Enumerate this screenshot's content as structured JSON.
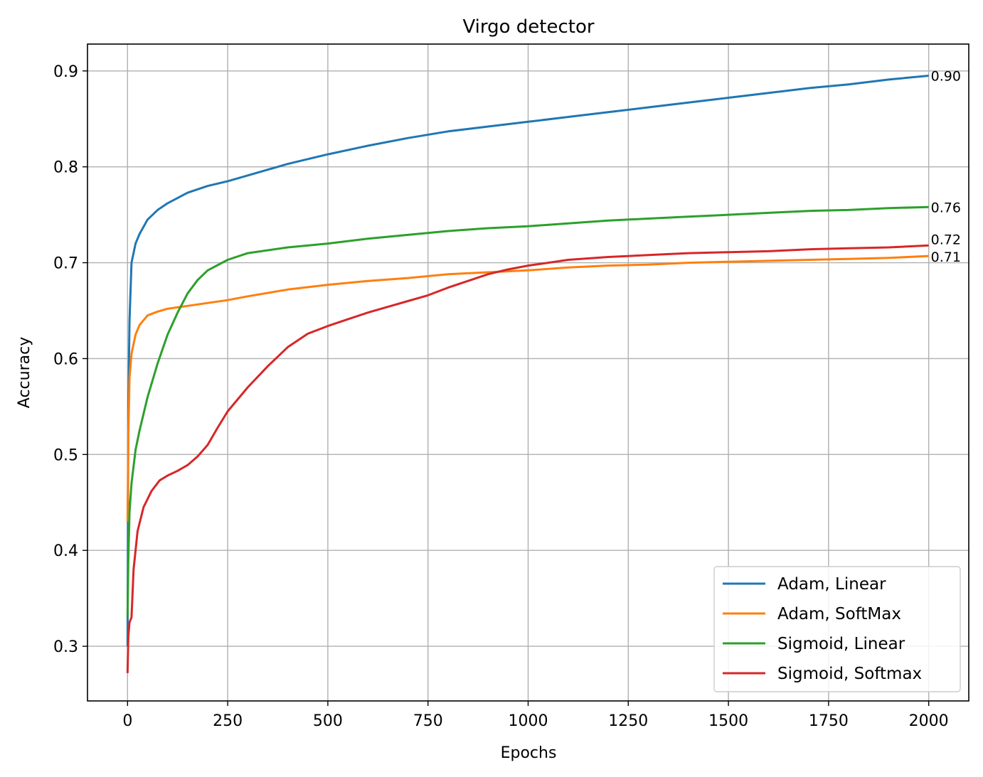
{
  "chart_data": {
    "type": "line",
    "title": "Virgo detector",
    "xlabel": "Epochs",
    "ylabel": "Accuracy",
    "xlim": [
      -100,
      2100
    ],
    "ylim": [
      0.243,
      0.928
    ],
    "xticks": [
      0,
      250,
      500,
      750,
      1000,
      1250,
      1500,
      1750,
      2000
    ],
    "xtick_labels": [
      "0",
      "250",
      "500",
      "750",
      "1000",
      "1250",
      "1500",
      "1750",
      "2000"
    ],
    "yticks": [
      0.3,
      0.4,
      0.5,
      0.6,
      0.7,
      0.8,
      0.9
    ],
    "ytick_labels": [
      "0.3",
      "0.4",
      "0.5",
      "0.6",
      "0.7",
      "0.8",
      "0.9"
    ],
    "grid": true,
    "legend_position": "lower-right",
    "series": [
      {
        "name": "Adam, Linear",
        "color": "#1f77b4",
        "end_label": "0.90",
        "x": [
          0,
          2,
          5,
          10,
          20,
          30,
          50,
          75,
          100,
          150,
          200,
          250,
          300,
          400,
          500,
          600,
          700,
          800,
          900,
          1000,
          1100,
          1200,
          1300,
          1400,
          1500,
          1600,
          1700,
          1800,
          1900,
          2000
        ],
        "y": [
          0.3,
          0.55,
          0.64,
          0.7,
          0.72,
          0.73,
          0.745,
          0.755,
          0.762,
          0.773,
          0.78,
          0.785,
          0.791,
          0.803,
          0.813,
          0.822,
          0.83,
          0.837,
          0.842,
          0.847,
          0.852,
          0.857,
          0.862,
          0.867,
          0.872,
          0.877,
          0.882,
          0.886,
          0.891,
          0.895
        ]
      },
      {
        "name": "Adam, SoftMax",
        "color": "#ff7f0e",
        "end_label": "0.71",
        "x": [
          0,
          2,
          5,
          10,
          20,
          30,
          50,
          75,
          100,
          150,
          200,
          250,
          300,
          400,
          500,
          600,
          700,
          800,
          900,
          1000,
          1100,
          1200,
          1300,
          1400,
          1500,
          1600,
          1700,
          1800,
          1900,
          2000
        ],
        "y": [
          0.43,
          0.52,
          0.58,
          0.605,
          0.625,
          0.635,
          0.645,
          0.649,
          0.652,
          0.655,
          0.658,
          0.661,
          0.665,
          0.672,
          0.677,
          0.681,
          0.684,
          0.688,
          0.69,
          0.692,
          0.695,
          0.697,
          0.698,
          0.7,
          0.701,
          0.702,
          0.703,
          0.704,
          0.705,
          0.707
        ]
      },
      {
        "name": "Sigmoid, Linear",
        "color": "#2ca02c",
        "end_label": "0.76",
        "x": [
          0,
          2,
          5,
          10,
          20,
          30,
          50,
          75,
          100,
          125,
          150,
          175,
          200,
          250,
          300,
          400,
          500,
          600,
          700,
          800,
          900,
          1000,
          1100,
          1200,
          1300,
          1400,
          1500,
          1600,
          1700,
          1800,
          1900,
          2000
        ],
        "y": [
          0.33,
          0.39,
          0.44,
          0.47,
          0.505,
          0.525,
          0.56,
          0.595,
          0.625,
          0.648,
          0.668,
          0.682,
          0.692,
          0.703,
          0.71,
          0.716,
          0.72,
          0.725,
          0.729,
          0.733,
          0.736,
          0.738,
          0.741,
          0.744,
          0.746,
          0.748,
          0.75,
          0.752,
          0.754,
          0.755,
          0.757,
          0.758
        ]
      },
      {
        "name": "Sigmoid, Softmax",
        "color": "#d62728",
        "end_label": "0.72",
        "x": [
          0,
          2,
          5,
          10,
          15,
          25,
          40,
          60,
          80,
          100,
          125,
          150,
          175,
          200,
          225,
          250,
          300,
          350,
          400,
          450,
          500,
          550,
          600,
          650,
          700,
          750,
          800,
          850,
          900,
          950,
          1000,
          1050,
          1100,
          1200,
          1300,
          1400,
          1500,
          1600,
          1700,
          1800,
          1900,
          2000
        ],
        "y": [
          0.272,
          0.31,
          0.325,
          0.33,
          0.38,
          0.42,
          0.445,
          0.462,
          0.473,
          0.478,
          0.483,
          0.489,
          0.498,
          0.51,
          0.528,
          0.545,
          0.57,
          0.592,
          0.612,
          0.626,
          0.634,
          0.641,
          0.648,
          0.654,
          0.66,
          0.666,
          0.674,
          0.681,
          0.688,
          0.693,
          0.697,
          0.7,
          0.703,
          0.706,
          0.708,
          0.71,
          0.711,
          0.712,
          0.714,
          0.715,
          0.716,
          0.718
        ]
      }
    ]
  }
}
